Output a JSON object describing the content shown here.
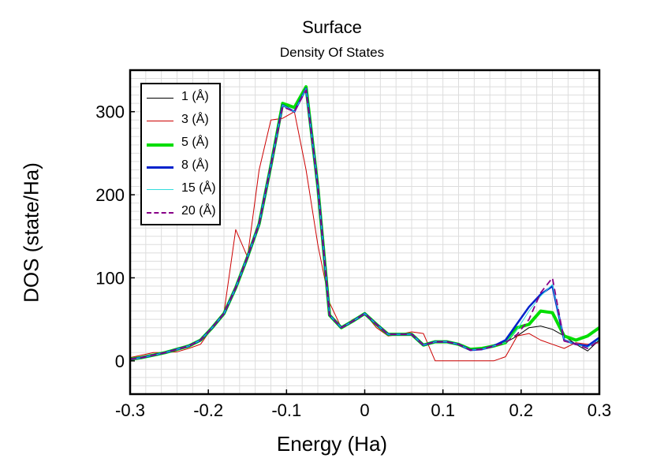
{
  "header": {
    "title": "Surface",
    "subtitle": "Density Of States"
  },
  "chart_data": {
    "type": "line",
    "title": "Surface",
    "subtitle": "Density Of States",
    "xlabel": "Energy (Ha)",
    "ylabel": "DOS (state/Ha)",
    "xlim": [
      -0.3,
      0.3
    ],
    "ylim": [
      -40,
      350
    ],
    "xticks": [
      -0.3,
      -0.2,
      -0.1,
      0,
      0.1,
      0.2,
      0.3
    ],
    "xtick_labels": [
      "-0.3",
      "-0.2",
      "-0.1",
      "0",
      "0.1",
      "0.2",
      "0.3"
    ],
    "yticks": [
      0,
      100,
      200,
      300
    ],
    "ytick_labels": [
      "0",
      "100",
      "200",
      "300"
    ],
    "grid": true,
    "legend_position": "top-left",
    "x": [
      -0.3,
      -0.285,
      -0.27,
      -0.255,
      -0.24,
      -0.225,
      -0.21,
      -0.195,
      -0.18,
      -0.165,
      -0.15,
      -0.135,
      -0.12,
      -0.105,
      -0.09,
      -0.075,
      -0.06,
      -0.045,
      -0.03,
      -0.015,
      0.0,
      0.015,
      0.03,
      0.045,
      0.06,
      0.075,
      0.09,
      0.105,
      0.12,
      0.135,
      0.15,
      0.165,
      0.18,
      0.195,
      0.21,
      0.225,
      0.24,
      0.255,
      0.27,
      0.285,
      0.3
    ],
    "series": [
      {
        "name": "1 (Å)",
        "color": "#000000",
        "dash": "",
        "values": [
          2,
          4,
          7,
          10,
          14,
          18,
          25,
          40,
          57,
          88,
          125,
          165,
          235,
          308,
          300,
          328,
          210,
          55,
          40,
          48,
          57,
          44,
          32,
          32,
          32,
          19,
          23,
          23,
          20,
          13,
          14,
          18,
          22,
          30,
          40,
          42,
          38,
          30,
          20,
          12,
          25
        ]
      },
      {
        "name": "3 (Å)",
        "color": "#cc0000",
        "dash": "",
        "values": [
          4,
          7,
          10,
          10,
          11,
          15,
          20,
          40,
          58,
          158,
          125,
          230,
          290,
          292,
          300,
          230,
          140,
          70,
          40,
          50,
          57,
          40,
          30,
          32,
          35,
          33,
          0,
          0,
          0,
          0,
          0,
          0,
          5,
          30,
          33,
          25,
          20,
          15,
          22,
          20,
          22
        ]
      },
      {
        "name": "5 (Å)",
        "color": "#00dd00",
        "dash": "",
        "values": [
          2,
          4,
          7,
          10,
          14,
          18,
          25,
          40,
          57,
          88,
          125,
          165,
          235,
          310,
          305,
          330,
          210,
          55,
          40,
          48,
          57,
          44,
          32,
          32,
          32,
          19,
          23,
          23,
          20,
          14,
          15,
          18,
          22,
          40,
          44,
          60,
          58,
          30,
          25,
          30,
          40
        ]
      },
      {
        "name": "8 (Å)",
        "color": "#0022cc",
        "dash": "",
        "values": [
          2,
          4,
          7,
          10,
          14,
          18,
          25,
          40,
          57,
          88,
          125,
          165,
          235,
          308,
          300,
          328,
          210,
          55,
          40,
          48,
          57,
          44,
          32,
          32,
          32,
          19,
          23,
          23,
          20,
          13,
          14,
          18,
          25,
          45,
          65,
          80,
          90,
          25,
          20,
          18,
          28
        ]
      },
      {
        "name": "15 (Å)",
        "color": "#33dddd",
        "dash": "",
        "values": [
          2,
          4,
          7,
          10,
          14,
          18,
          25,
          40,
          57,
          88,
          125,
          165,
          235,
          308,
          300,
          328,
          210,
          55,
          40,
          48,
          57,
          44,
          32,
          32,
          32,
          19,
          23,
          23,
          20,
          13,
          14,
          18,
          22,
          38,
          60,
          78,
          92,
          25,
          20,
          16,
          26
        ]
      },
      {
        "name": "20 (Å)",
        "color": "#880088",
        "dash": "8,5",
        "values": [
          2,
          4,
          7,
          10,
          14,
          18,
          25,
          40,
          57,
          88,
          125,
          165,
          235,
          306,
          300,
          326,
          210,
          55,
          40,
          48,
          57,
          44,
          32,
          32,
          32,
          19,
          23,
          23,
          20,
          13,
          14,
          18,
          22,
          32,
          50,
          82,
          100,
          24,
          20,
          15,
          25
        ]
      }
    ]
  }
}
